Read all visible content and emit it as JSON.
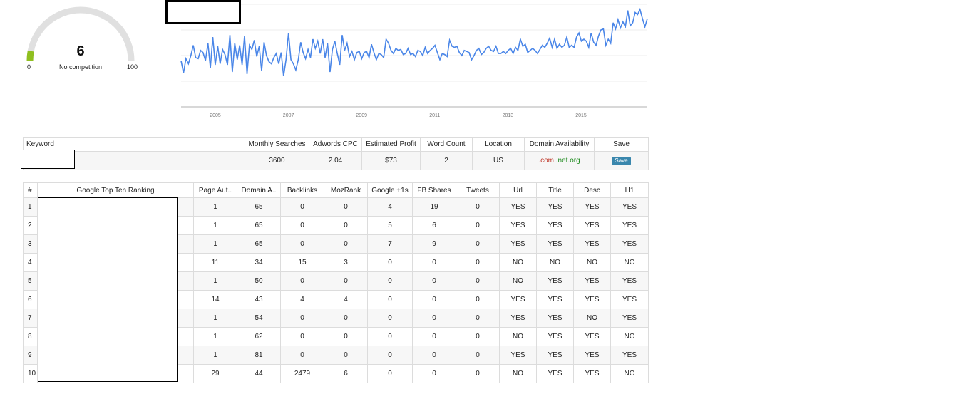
{
  "gauge": {
    "value": "6",
    "label": "No competition",
    "min": "0",
    "max": "100",
    "fill_fraction": 0.06,
    "track_color": "#e0e0e0",
    "fill_color": "#8fbf1f"
  },
  "chart_data": {
    "type": "line",
    "title": "",
    "xlabel": "",
    "ylabel": "",
    "x_ticks": [
      "2005",
      "2007",
      "2009",
      "2011",
      "2013",
      "2015"
    ],
    "line_color": "#4a86e8",
    "ylim": [
      0,
      100
    ],
    "series": [
      {
        "values": [
          45,
          33,
          47,
          42,
          50,
          60,
          48,
          47,
          55,
          53,
          45,
          62,
          38,
          68,
          41,
          59,
          42,
          56,
          51,
          41,
          70,
          34,
          62,
          46,
          60,
          41,
          69,
          32,
          60,
          56,
          65,
          49,
          59,
          35,
          63,
          50,
          44,
          42,
          48,
          52,
          42,
          53,
          30,
          46,
          72,
          46,
          42,
          36,
          46,
          63,
          53,
          47,
          56,
          48,
          66,
          57,
          64,
          52,
          66,
          48,
          62,
          34,
          56,
          64,
          52,
          41,
          70,
          55,
          62,
          49,
          54,
          46,
          53,
          54,
          47,
          53,
          54,
          48,
          61,
          53,
          46,
          52,
          51,
          48,
          66,
          62,
          55,
          52,
          57,
          55,
          56,
          51,
          52,
          57,
          51,
          52,
          49,
          55,
          54,
          50,
          58,
          52,
          55,
          57,
          60,
          53,
          46,
          52,
          51,
          49,
          65,
          59,
          58,
          59,
          53,
          50,
          55,
          54,
          53,
          46,
          50,
          55,
          57,
          51,
          53,
          57,
          59,
          55,
          54,
          59,
          52,
          52,
          54,
          52,
          55,
          57,
          52,
          58,
          55,
          66,
          59,
          61,
          53,
          55,
          57,
          55,
          52,
          56,
          60,
          58,
          62,
          67,
          58,
          66,
          57,
          61,
          58,
          60,
          68,
          58,
          60,
          58,
          68,
          72,
          64,
          66,
          64,
          58,
          72,
          63,
          60,
          69,
          75,
          76,
          60,
          66,
          62,
          82,
          76,
          85,
          77,
          83,
          78,
          94,
          79,
          82,
          92,
          90,
          95,
          86,
          78,
          86
        ]
      }
    ]
  },
  "keyword_table": {
    "headers": [
      "Keyword",
      "Monthly Searches",
      "Adwords CPC",
      "Estimated Profit",
      "Word Count",
      "Location",
      "Domain Availability",
      "Save"
    ],
    "row": {
      "keyword": "",
      "monthly_searches": "3600",
      "adwords_cpc": "2.04",
      "estimated_profit": "$73",
      "word_count": "2",
      "location": "US",
      "domain_com": ".com",
      "domain_net": ".net",
      "domain_org": ".org",
      "save_label": "Save"
    }
  },
  "ranking_table": {
    "headers": [
      "#",
      "Google Top Ten Ranking",
      "Page Aut..",
      "Domain A..",
      "Backlinks",
      "MozRank",
      "Google +1s",
      "FB Shares",
      "Tweets",
      "Url",
      "Title",
      "Desc",
      "H1"
    ],
    "rows": [
      [
        "1",
        "",
        "1",
        "65",
        "0",
        "0",
        "4",
        "19",
        "0",
        "YES",
        "YES",
        "YES",
        "YES"
      ],
      [
        "2",
        "",
        "1",
        "65",
        "0",
        "0",
        "5",
        "6",
        "0",
        "YES",
        "YES",
        "YES",
        "YES"
      ],
      [
        "3",
        "",
        "1",
        "65",
        "0",
        "0",
        "7",
        "9",
        "0",
        "YES",
        "YES",
        "YES",
        "YES"
      ],
      [
        "4",
        "",
        "11",
        "34",
        "15",
        "3",
        "0",
        "0",
        "0",
        "NO",
        "NO",
        "NO",
        "NO"
      ],
      [
        "5",
        "",
        "1",
        "50",
        "0",
        "0",
        "0",
        "0",
        "0",
        "NO",
        "YES",
        "YES",
        "YES"
      ],
      [
        "6",
        "",
        "14",
        "43",
        "4",
        "4",
        "0",
        "0",
        "0",
        "YES",
        "YES",
        "YES",
        "YES"
      ],
      [
        "7",
        "",
        "1",
        "54",
        "0",
        "0",
        "0",
        "0",
        "0",
        "YES",
        "YES",
        "NO",
        "YES"
      ],
      [
        "8",
        "",
        "1",
        "62",
        "0",
        "0",
        "0",
        "0",
        "0",
        "NO",
        "YES",
        "YES",
        "NO"
      ],
      [
        "9",
        "",
        "1",
        "81",
        "0",
        "0",
        "0",
        "0",
        "0",
        "YES",
        "YES",
        "YES",
        "YES"
      ],
      [
        "10",
        "",
        "29",
        "44",
        "2479",
        "6",
        "0",
        "0",
        "0",
        "NO",
        "YES",
        "YES",
        "NO"
      ]
    ]
  }
}
